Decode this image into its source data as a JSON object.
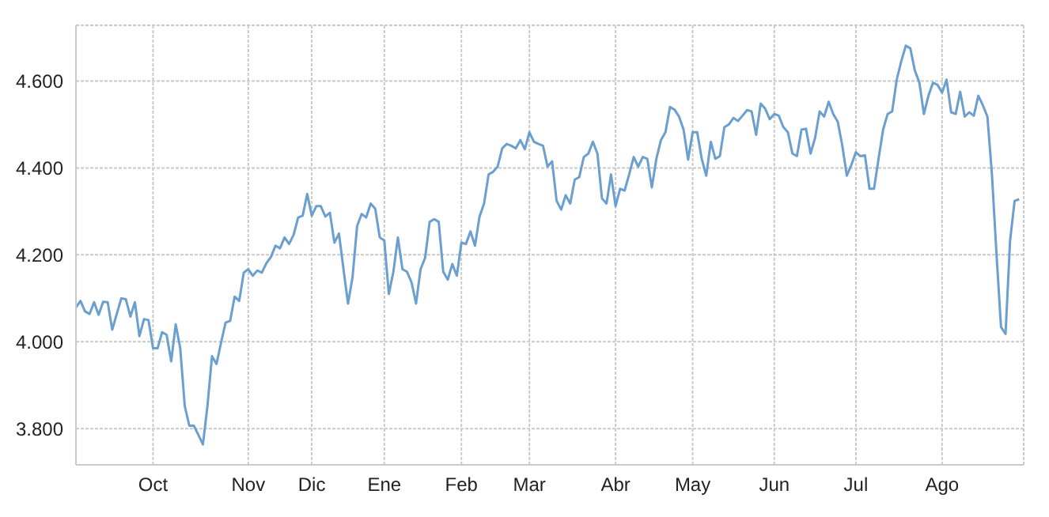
{
  "chart_data": {
    "type": "line",
    "categories": [
      null,
      null,
      null,
      null,
      null,
      null,
      null,
      null,
      null,
      null,
      null,
      null,
      null,
      null,
      null,
      null,
      null,
      "Oct",
      null,
      null,
      null,
      null,
      null,
      null,
      null,
      null,
      null,
      null,
      null,
      null,
      null,
      null,
      null,
      null,
      null,
      null,
      null,
      null,
      "Nov",
      null,
      null,
      null,
      null,
      null,
      null,
      null,
      null,
      null,
      null,
      null,
      null,
      null,
      "Dic",
      null,
      null,
      null,
      null,
      null,
      null,
      null,
      null,
      null,
      null,
      null,
      null,
      null,
      null,
      null,
      "Ene",
      null,
      null,
      null,
      null,
      null,
      null,
      null,
      null,
      null,
      null,
      null,
      null,
      null,
      null,
      null,
      null,
      "Feb",
      null,
      null,
      null,
      null,
      null,
      null,
      null,
      null,
      null,
      null,
      null,
      null,
      null,
      null,
      "Mar",
      null,
      null,
      null,
      null,
      null,
      null,
      null,
      null,
      null,
      null,
      null,
      null,
      null,
      null,
      null,
      null,
      null,
      null,
      "Abr",
      null,
      null,
      null,
      null,
      null,
      null,
      null,
      null,
      null,
      null,
      null,
      null,
      null,
      null,
      null,
      null,
      "May",
      null,
      null,
      null,
      null,
      null,
      null,
      null,
      null,
      null,
      null,
      null,
      null,
      null,
      null,
      null,
      null,
      null,
      "Jun",
      null,
      null,
      null,
      null,
      null,
      null,
      null,
      null,
      null,
      null,
      null,
      null,
      null,
      null,
      null,
      null,
      null,
      "Jul",
      null,
      null,
      null,
      null,
      null,
      null,
      null,
      null,
      null,
      null,
      null,
      null,
      null,
      null,
      null,
      null,
      null,
      null,
      "Ago",
      null,
      null,
      null,
      null,
      null,
      null,
      null,
      null,
      null,
      null,
      null,
      null,
      null,
      null,
      null,
      null,
      null
    ],
    "series": [
      {
        "color": "#6a9fd0",
        "values": [
          4079,
          4094,
          4070,
          4064,
          4091,
          4062,
          4092,
          4091,
          4028,
          4064,
          4100,
          4098,
          4058,
          4091,
          4013,
          4052,
          4050,
          3985,
          3985,
          4022,
          4016,
          3955,
          4040,
          3985,
          3852,
          3807,
          3807,
          3786,
          3764,
          3852,
          3967,
          3949,
          3998,
          4044,
          4048,
          4104,
          4094,
          4159,
          4167,
          4152,
          4164,
          4159,
          4181,
          4195,
          4221,
          4215,
          4240,
          4225,
          4246,
          4286,
          4290,
          4340,
          4290,
          4312,
          4312,
          4288,
          4297,
          4228,
          4249,
          4167,
          4088,
          4149,
          4266,
          4294,
          4286,
          4318,
          4306,
          4240,
          4233,
          4110,
          4161,
          4240,
          4167,
          4161,
          4137,
          4088,
          4167,
          4193,
          4276,
          4282,
          4276,
          4161,
          4143,
          4179,
          4152,
          4228,
          4225,
          4254,
          4221,
          4288,
          4318,
          4385,
          4391,
          4403,
          4445,
          4455,
          4451,
          4445,
          4464,
          4443,
          4482,
          4460,
          4455,
          4451,
          4403,
          4415,
          4324,
          4304,
          4337,
          4318,
          4373,
          4379,
          4425,
          4433,
          4460,
          4433,
          4330,
          4318,
          4385,
          4312,
          4352,
          4348,
          4385,
          4425,
          4403,
          4425,
          4421,
          4355,
          4421,
          4464,
          4482,
          4540,
          4534,
          4518,
          4488,
          4419,
          4482,
          4482,
          4421,
          4382,
          4460,
          4421,
          4427,
          4494,
          4500,
          4515,
          4508,
          4520,
          4533,
          4530,
          4476,
          4548,
          4536,
          4512,
          4524,
          4520,
          4494,
          4482,
          4433,
          4427,
          4488,
          4490,
          4433,
          4469,
          4530,
          4518,
          4552,
          4524,
          4506,
          4451,
          4382,
          4407,
          4436,
          4427,
          4429,
          4352,
          4352,
          4421,
          4488,
          4524,
          4530,
          4603,
          4645,
          4681,
          4675,
          4624,
          4596,
          4524,
          4566,
          4596,
          4591,
          4573,
          4603,
          4528,
          4524,
          4575,
          4518,
          4528,
          4520,
          4566,
          4544,
          4518,
          4385,
          4203,
          4034,
          4018,
          4233,
          4324,
          4328
        ]
      }
    ],
    "ylim": [
      3717,
      4728
    ],
    "yticks": [
      {
        "value": 3800,
        "label": "3.800"
      },
      {
        "value": 4000,
        "label": "4.000"
      },
      {
        "value": 4200,
        "label": "4.200"
      },
      {
        "value": 4400,
        "label": "4.400"
      },
      {
        "value": 4600,
        "label": "4.600"
      }
    ],
    "grid": true,
    "legend": false,
    "marker": "none",
    "line_style": "solid"
  }
}
